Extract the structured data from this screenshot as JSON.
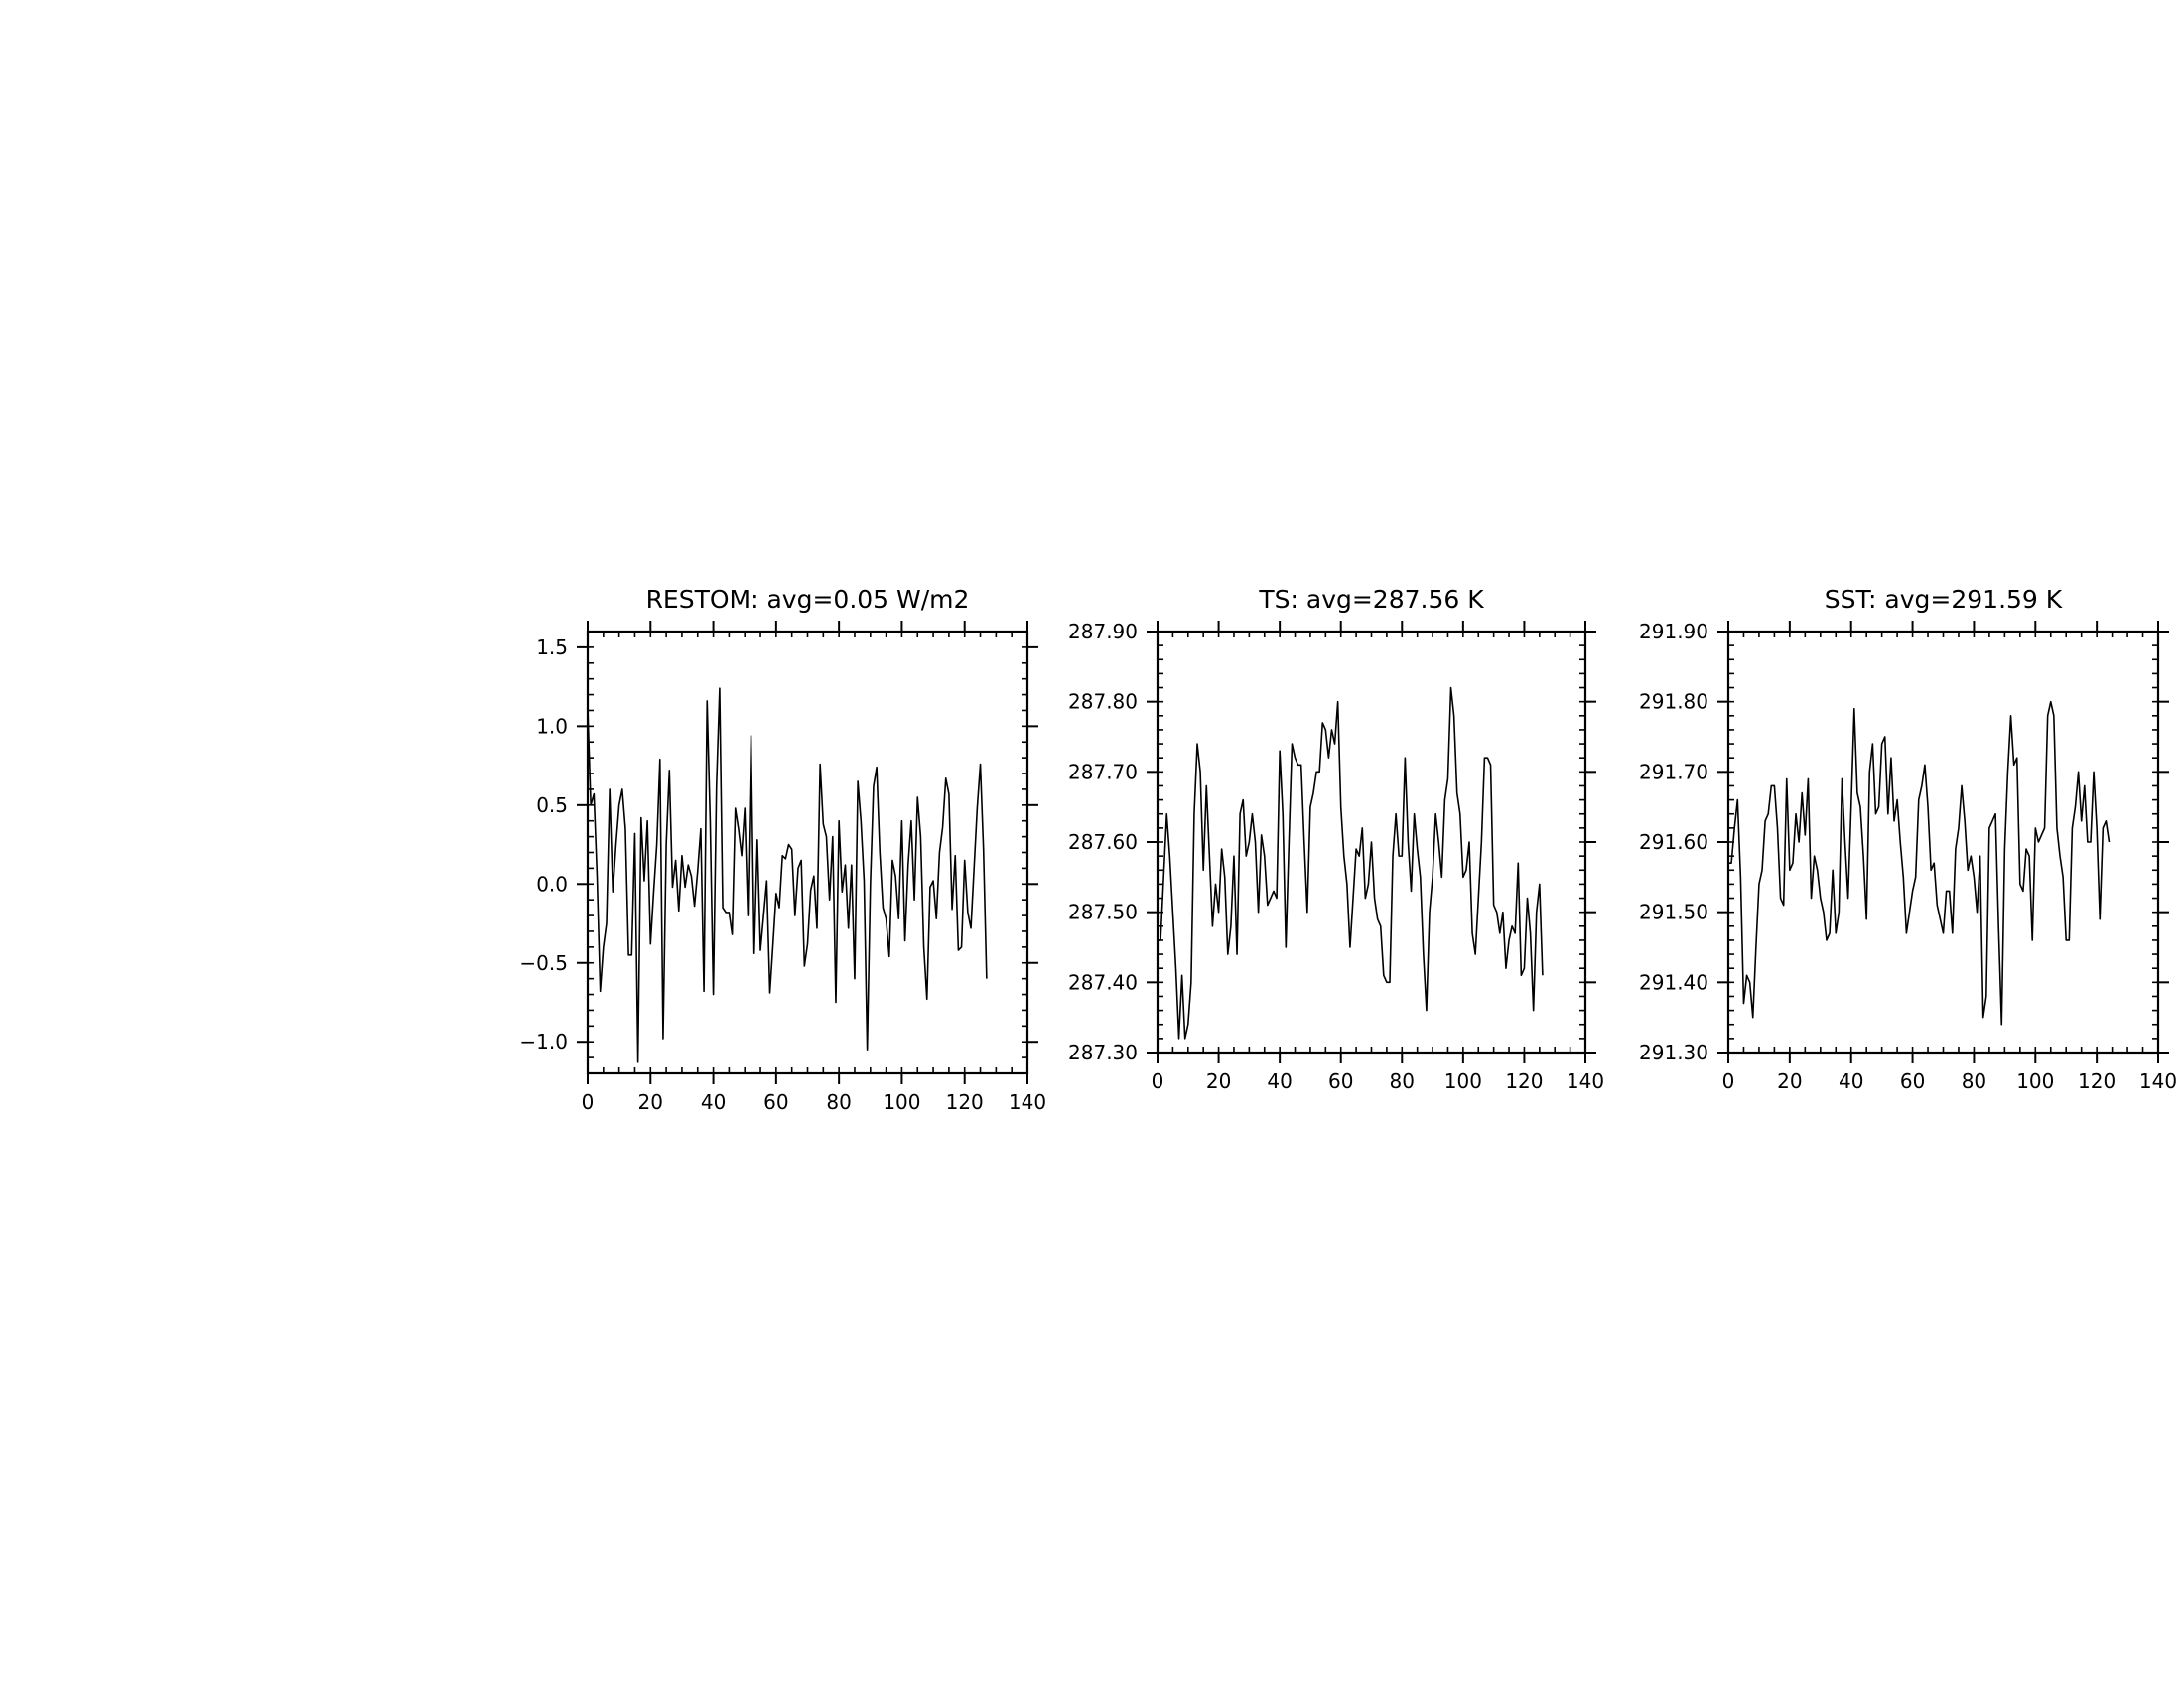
{
  "chart_data": [
    {
      "type": "line",
      "title": "RESTOM: avg=0.05 W/m2",
      "xlabel": "",
      "ylabel": "",
      "xlim": [
        0,
        140
      ],
      "ylim": [
        -1.2,
        1.6
      ],
      "xticks": [
        0,
        20,
        40,
        60,
        80,
        100,
        120,
        140
      ],
      "xtick_labels": [
        "0",
        "20",
        "40",
        "60",
        "80",
        "100",
        "120",
        "140"
      ],
      "yticks": [
        -1.0,
        -0.5,
        0.0,
        0.5,
        1.0,
        1.5
      ],
      "ytick_labels": [
        "−1.0",
        "−0.5",
        "0.0",
        "0.5",
        "1.0",
        "1.5"
      ],
      "grid": false,
      "series": [
        {
          "x_start": 0,
          "values": [
            1.11,
            0.5,
            0.57,
            0.05,
            -0.68,
            -0.4,
            -0.25,
            0.6,
            -0.05,
            0.25,
            0.5,
            0.6,
            0.35,
            -0.45,
            -0.45,
            0.32,
            -1.13,
            0.42,
            0.02,
            0.4,
            -0.38,
            -0.05,
            0.25,
            0.79,
            -0.98,
            0.25,
            0.72,
            -0.02,
            0.15,
            -0.17,
            0.18,
            -0.02,
            0.12,
            0.05,
            -0.14,
            0.08,
            0.35,
            -0.68,
            1.16,
            0.4,
            -0.7,
            0.62,
            1.24,
            -0.15,
            -0.18,
            -0.18,
            -0.32,
            0.48,
            0.35,
            0.18,
            0.48,
            -0.2,
            0.94,
            -0.44,
            0.28,
            -0.42,
            -0.2,
            0.02,
            -0.69,
            -0.38,
            -0.06,
            -0.15,
            0.18,
            0.16,
            0.25,
            0.22,
            -0.2,
            0.1,
            0.15,
            -0.52,
            -0.38,
            -0.04,
            0.05,
            -0.28,
            0.76,
            0.38,
            0.3,
            -0.1,
            0.3,
            -0.75,
            0.4,
            -0.05,
            0.12,
            -0.28,
            0.12,
            -0.6,
            0.65,
            0.4,
            0.02,
            -1.05,
            0.0,
            0.62,
            0.74,
            0.2,
            -0.15,
            -0.22,
            -0.46,
            0.15,
            0.05,
            -0.22,
            0.4,
            -0.36,
            0.12,
            0.4,
            -0.1,
            0.55,
            0.3,
            -0.4,
            -0.73,
            -0.02,
            0.02,
            -0.22,
            0.2,
            0.36,
            0.67,
            0.57,
            -0.16,
            0.18,
            -0.42,
            -0.4,
            0.15,
            -0.18,
            -0.28,
            0.1,
            0.48,
            0.76,
            0.22,
            -0.6
          ]
        }
      ]
    },
    {
      "type": "line",
      "title": "TS: avg=287.56 K",
      "xlabel": "",
      "ylabel": "",
      "xlim": [
        0,
        140
      ],
      "ylim": [
        287.3,
        287.9
      ],
      "xticks": [
        0,
        20,
        40,
        60,
        80,
        100,
        120,
        140
      ],
      "xtick_labels": [
        "0",
        "20",
        "40",
        "60",
        "80",
        "100",
        "120",
        "140"
      ],
      "yticks": [
        287.3,
        287.4,
        287.5,
        287.6,
        287.7,
        287.8,
        287.9
      ],
      "ytick_labels": [
        "287.30",
        "287.40",
        "287.50",
        "287.60",
        "287.70",
        "287.80",
        "287.90"
      ],
      "grid": false,
      "series": [
        {
          "x_start": 0,
          "values": [
            287.46,
            287.46,
            287.55,
            287.64,
            287.58,
            287.5,
            287.42,
            287.32,
            287.41,
            287.32,
            287.34,
            287.4,
            287.64,
            287.74,
            287.7,
            287.56,
            287.68,
            287.58,
            287.48,
            287.54,
            287.5,
            287.59,
            287.55,
            287.44,
            287.48,
            287.58,
            287.44,
            287.64,
            287.66,
            287.58,
            287.6,
            287.64,
            287.6,
            287.5,
            287.61,
            287.58,
            287.51,
            287.52,
            287.53,
            287.52,
            287.73,
            287.64,
            287.45,
            287.6,
            287.74,
            287.72,
            287.71,
            287.71,
            287.6,
            287.5,
            287.65,
            287.67,
            287.7,
            287.7,
            287.77,
            287.76,
            287.72,
            287.76,
            287.74,
            287.8,
            287.65,
            287.58,
            287.54,
            287.45,
            287.52,
            287.59,
            287.58,
            287.62,
            287.52,
            287.54,
            287.6,
            287.52,
            287.49,
            287.48,
            287.41,
            287.4,
            287.4,
            287.58,
            287.64,
            287.58,
            287.58,
            287.72,
            287.6,
            287.53,
            287.64,
            287.59,
            287.55,
            287.44,
            287.36,
            287.5,
            287.55,
            287.64,
            287.6,
            287.55,
            287.66,
            287.69,
            287.82,
            287.78,
            287.67,
            287.64,
            287.55,
            287.56,
            287.6,
            287.47,
            287.44,
            287.52,
            287.6,
            287.72,
            287.72,
            287.71,
            287.51,
            287.5,
            287.47,
            287.5,
            287.42,
            287.46,
            287.48,
            287.47,
            287.57,
            287.41,
            287.42,
            287.52,
            287.47,
            287.36,
            287.5,
            287.54,
            287.41
          ]
        }
      ]
    },
    {
      "type": "line",
      "title": "SST: avg=291.59 K",
      "xlabel": "",
      "ylabel": "",
      "xlim": [
        0,
        140
      ],
      "ylim": [
        291.3,
        291.9
      ],
      "xticks": [
        0,
        20,
        40,
        60,
        80,
        100,
        120,
        140
      ],
      "xtick_labels": [
        "0",
        "20",
        "40",
        "60",
        "80",
        "100",
        "120",
        "140"
      ],
      "yticks": [
        291.3,
        291.4,
        291.5,
        291.6,
        291.7,
        291.8,
        291.9
      ],
      "ytick_labels": [
        "291.30",
        "291.40",
        "291.50",
        "291.60",
        "291.70",
        "291.80",
        "291.90"
      ],
      "grid": false,
      "series": [
        {
          "x_start": 0,
          "values": [
            291.57,
            291.57,
            291.62,
            291.66,
            291.55,
            291.37,
            291.41,
            291.4,
            291.35,
            291.45,
            291.54,
            291.56,
            291.63,
            291.64,
            291.68,
            291.68,
            291.62,
            291.52,
            291.51,
            291.69,
            291.56,
            291.57,
            291.64,
            291.6,
            291.67,
            291.61,
            291.69,
            291.52,
            291.58,
            291.56,
            291.52,
            291.5,
            291.46,
            291.47,
            291.56,
            291.47,
            291.5,
            291.69,
            291.6,
            291.52,
            291.65,
            291.79,
            291.67,
            291.65,
            291.58,
            291.49,
            291.7,
            291.74,
            291.64,
            291.65,
            291.74,
            291.75,
            291.64,
            291.72,
            291.63,
            291.66,
            291.6,
            291.55,
            291.47,
            291.5,
            291.53,
            291.55,
            291.66,
            291.68,
            291.71,
            291.65,
            291.56,
            291.57,
            291.51,
            291.49,
            291.47,
            291.53,
            291.53,
            291.47,
            291.59,
            291.62,
            291.68,
            291.63,
            291.56,
            291.58,
            291.55,
            291.5,
            291.58,
            291.35,
            291.38,
            291.62,
            291.63,
            291.64,
            291.48,
            291.34,
            291.59,
            291.7,
            291.78,
            291.71,
            291.72,
            291.54,
            291.53,
            291.59,
            291.58,
            291.46,
            291.62,
            291.6,
            291.61,
            291.62,
            291.78,
            291.8,
            291.78,
            291.62,
            291.58,
            291.55,
            291.46,
            291.46,
            291.62,
            291.65,
            291.7,
            291.63,
            291.68,
            291.6,
            291.6,
            291.7,
            291.62,
            291.49,
            291.62,
            291.63,
            291.6
          ]
        }
      ]
    }
  ]
}
